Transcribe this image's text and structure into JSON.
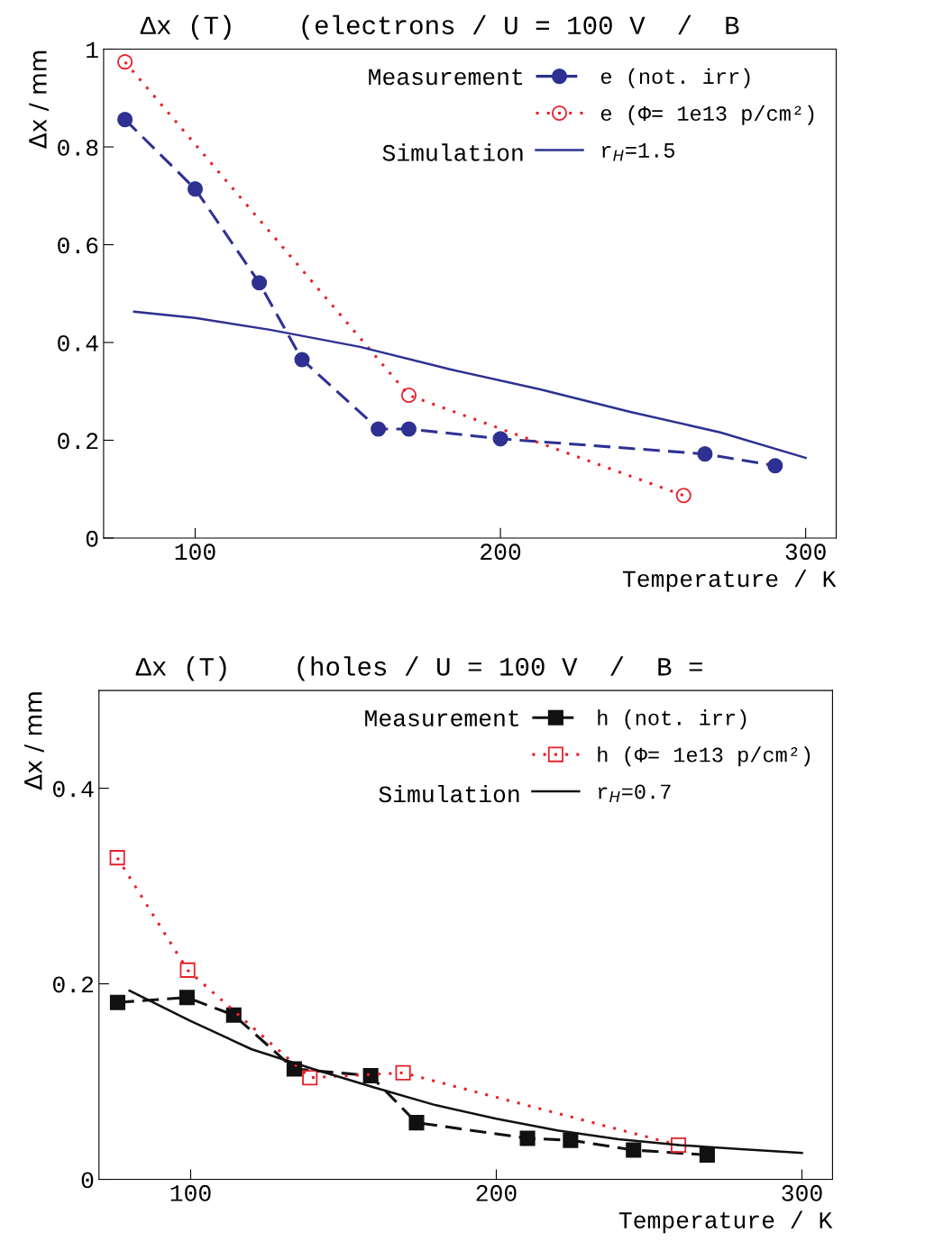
{
  "chart_data": [
    {
      "type": "line",
      "title": "Δx (T)    (electrons / U = 100 V  /  B",
      "xlabel": "Temperature / K",
      "ylabel": "Δx / mm",
      "xlim": [
        70,
        310
      ],
      "xticks": [
        100,
        200,
        300
      ],
      "ylim": [
        0,
        1
      ],
      "yticks": [
        0,
        0.2,
        0.4,
        0.6,
        0.8,
        1
      ],
      "grid": false,
      "legend": "top right",
      "annotations": [
        "Measurement",
        "Simulation"
      ],
      "series": [
        {
          "name": "e (not. irr)",
          "color": "#2e3192",
          "marker": "circle",
          "line_style": "dashed",
          "x": [
            77,
            100,
            121,
            135,
            160,
            170,
            200,
            267,
            290
          ],
          "values": [
            0.856,
            0.714,
            0.522,
            0.365,
            0.223,
            0.223,
            0.203,
            0.172,
            0.148
          ]
        },
        {
          "name": "e (Φ= 1e13 p/cm²)",
          "color": "#e8202a",
          "marker": "circle",
          "line_style": "dotted",
          "x": [
            77,
            170,
            260
          ],
          "values": [
            0.974,
            0.292,
            0.087
          ]
        },
        {
          "name": "r$_{H}$=1.5",
          "color": "#2e3192",
          "marker": "none",
          "line_style": "solid",
          "x": [
            80,
            100,
            124.5,
            154,
            183.5,
            213,
            242.5,
            272,
            300
          ],
          "values": [
            0.463,
            0.45,
            0.426,
            0.391,
            0.345,
            0.304,
            0.258,
            0.216,
            0.164
          ]
        }
      ]
    },
    {
      "type": "line",
      "title": "Δx (T)    (holes / U = 100 V  /  B =",
      "xlabel": "Temperature / K",
      "ylabel": "Δx / mm",
      "xlim": [
        70,
        310
      ],
      "xticks": [
        100,
        200,
        300
      ],
      "ylim": [
        0,
        0.5
      ],
      "yticks": [
        0,
        0.2,
        0.4
      ],
      "grid": false,
      "legend": "top right",
      "annotations": [
        "Measurement",
        "Simulation"
      ],
      "series": [
        {
          "name": "h (not. irr)",
          "color": "#111111",
          "marker": "square",
          "line_style": "dashed",
          "x": [
            76.1,
            98.8,
            114.1,
            133.9,
            158.9,
            173.9,
            210.2,
            224.3,
            244.9,
            269
          ],
          "values": [
            0.181,
            0.186,
            0.168,
            0.113,
            0.106,
            0.058,
            0.042,
            0.04,
            0.03,
            0.025
          ]
        },
        {
          "name": "h (Φ= 1e13 p/cm²)",
          "color": "#e8202a",
          "marker": "square",
          "line_style": "dotted",
          "x": [
            76,
            99,
            139,
            169.5,
            259.6
          ],
          "values": [
            0.329,
            0.214,
            0.104,
            0.109,
            0.035
          ]
        },
        {
          "name": "r$_{H}$=0.7",
          "color": "#111111",
          "marker": "none",
          "line_style": "solid",
          "x": [
            80,
            100,
            120,
            140,
            160,
            180,
            200,
            220,
            240,
            260,
            280,
            300
          ],
          "values": [
            0.193,
            0.162,
            0.133,
            0.113,
            0.094,
            0.076,
            0.062,
            0.05,
            0.041,
            0.035,
            0.031,
            0.027
          ]
        }
      ]
    }
  ]
}
